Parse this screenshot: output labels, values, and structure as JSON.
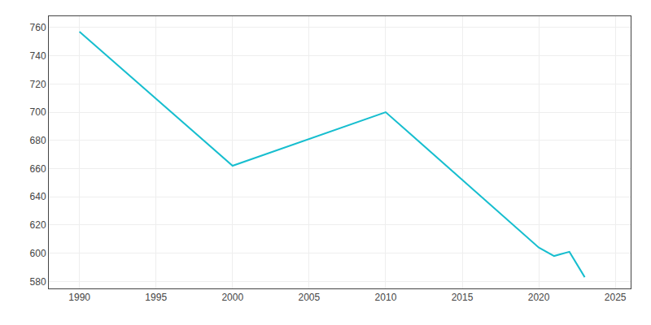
{
  "chart_data": {
    "type": "line",
    "x": [
      1990,
      2000,
      2010,
      2020,
      2021,
      2022,
      2023
    ],
    "values": [
      757,
      662,
      700,
      604,
      598,
      601,
      583
    ],
    "color": "#17BECF",
    "xlim": [
      1988,
      2026
    ],
    "xticks": [
      1990,
      1995,
      2000,
      2005,
      2010,
      2015,
      2020,
      2025
    ],
    "ylim": [
      575,
      768
    ],
    "yticks": [
      580,
      600,
      620,
      640,
      660,
      680,
      700,
      720,
      740,
      760
    ],
    "grid": true
  }
}
